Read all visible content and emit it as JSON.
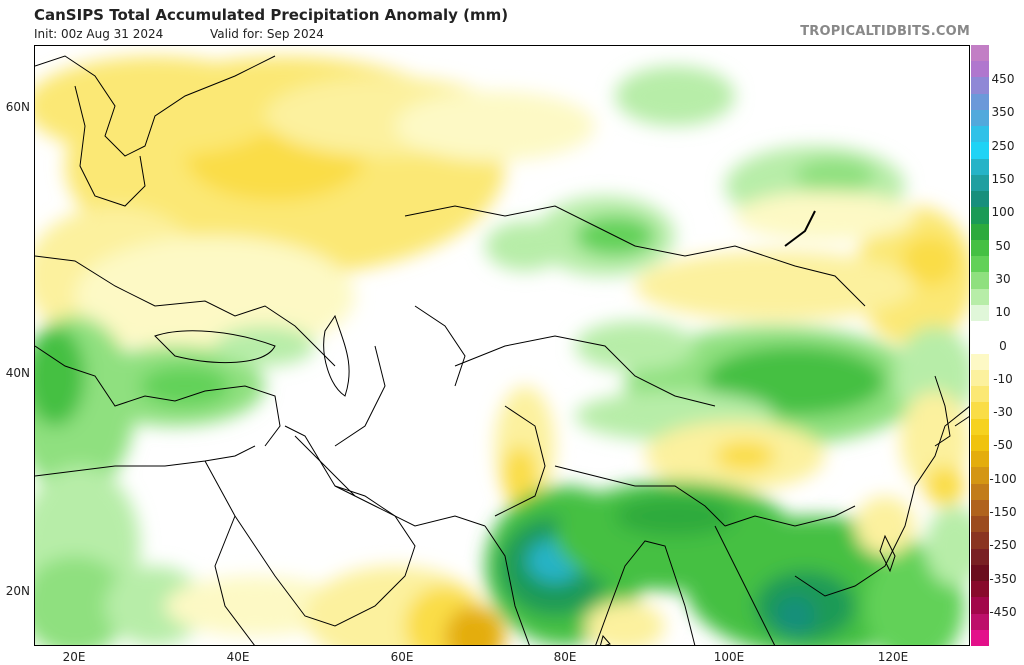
{
  "header": {
    "title": "CanSIPS Total Accumulated Precipitation Anomaly (mm)",
    "init": "Init: 00z Aug 31 2024",
    "valid": "Valid for: Sep 2024",
    "brand": "TROPICALTIDBITS.COM"
  },
  "axes": {
    "lat_labels": [
      "60N",
      "40N",
      "20N"
    ],
    "lon_labels": [
      "20E",
      "40E",
      "60E",
      "80E",
      "100E",
      "120E"
    ]
  },
  "colorbar": {
    "labels": [
      "450",
      "350",
      "250",
      "150",
      "100",
      "50",
      "30",
      "10",
      "0",
      "-10",
      "-30",
      "-50",
      "-100",
      "-150",
      "-250",
      "-350",
      "-450"
    ],
    "colors": [
      "#c27ec5",
      "#b077ce",
      "#8f88d6",
      "#6c99d9",
      "#51a9dc",
      "#2fc1e8",
      "#1fd3f5",
      "#25b3c7",
      "#1f9fa0",
      "#178f7c",
      "#1b9a56",
      "#2daa3d",
      "#45c043",
      "#62d158",
      "#8fe07f",
      "#b7eda8",
      "#e0f7d9",
      "#ffffff",
      "#ffffff",
      "#fdf9c5",
      "#fcf19e",
      "#fbe874",
      "#fadd46",
      "#f6d21f",
      "#f0c30e",
      "#e4ad0d",
      "#d49614",
      "#c27c1a",
      "#b0631d",
      "#9c4b1e",
      "#8a3420",
      "#792023",
      "#6b0d1d",
      "#880a2b",
      "#a2064a",
      "#bd0f6a",
      "#e3108a"
    ]
  }
}
